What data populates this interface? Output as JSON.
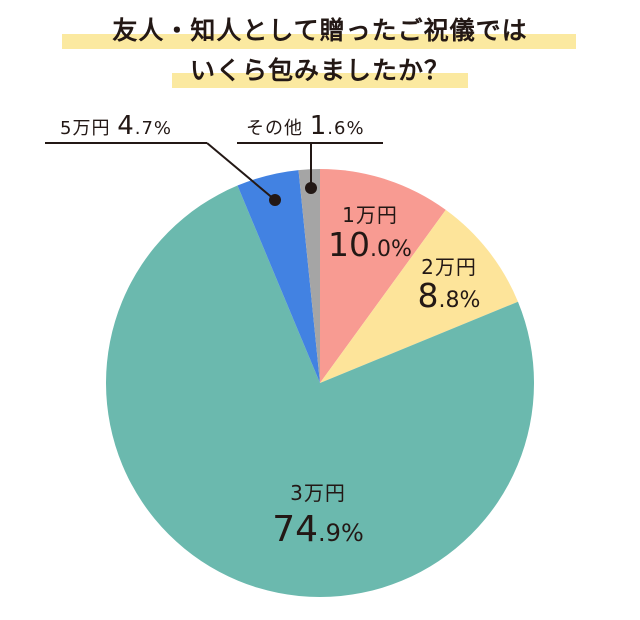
{
  "title": {
    "line1": "友人・知人として贈ったご祝儀では",
    "line2": "いくら包みましたか？"
  },
  "colors": {
    "title_highlight": "#fbe9a0",
    "text": "#231815",
    "leader": "#231815"
  },
  "chart_data": {
    "type": "pie",
    "title": "友人・知人として贈ったご祝儀ではいくら包みましたか？",
    "start": "12 o'clock",
    "direction": "clockwise",
    "slices": [
      {
        "label": "1万円",
        "value": 10.0,
        "integer": "10",
        "decimal": ".0%",
        "color": "#f89b92"
      },
      {
        "label": "2万円",
        "value": 8.8,
        "integer": "8",
        "decimal": ".8%",
        "color": "#fde49a"
      },
      {
        "label": "3万円",
        "value": 74.9,
        "integer": "74",
        "decimal": ".9%",
        "color": "#6bb9ae"
      },
      {
        "label": "5万円",
        "value": 4.7,
        "integer": "4",
        "decimal": ".7%",
        "color": "#4282e2"
      },
      {
        "label": "その他",
        "value": 1.6,
        "integer": "1",
        "decimal": ".6%",
        "color": "#a5a5a5"
      }
    ]
  }
}
